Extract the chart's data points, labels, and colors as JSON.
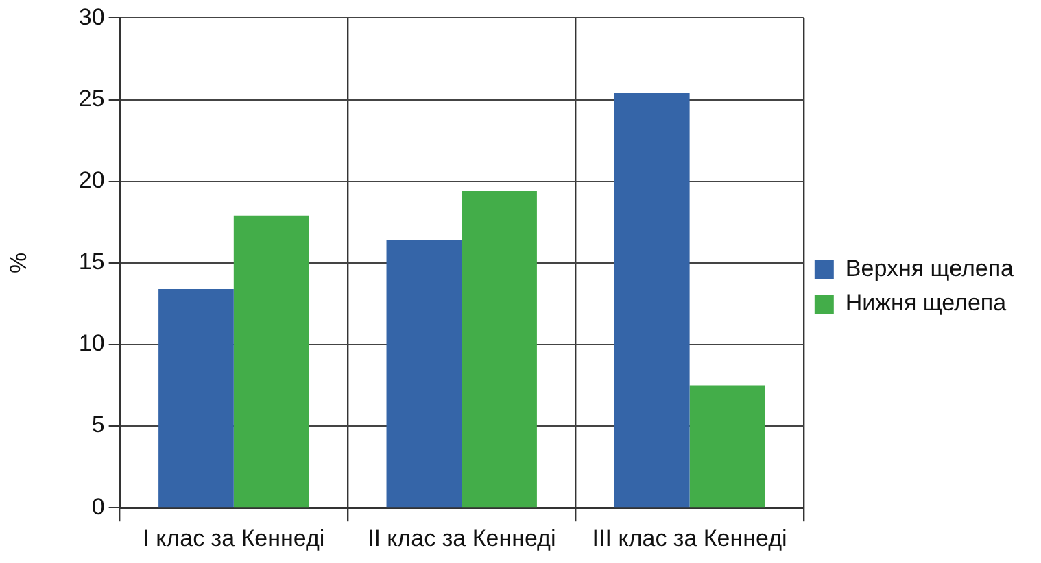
{
  "chart_data": {
    "type": "bar",
    "ylabel": "%",
    "categories": [
      "I клас за Кеннеді",
      "II клас за Кеннеді",
      "III клас за Кеннеді"
    ],
    "series": [
      {
        "name": "Верхня щелепа",
        "color": "#3565a8",
        "values": [
          13.4,
          16.4,
          25.4
        ]
      },
      {
        "name": "Нижня щелепа",
        "color": "#43ad49",
        "values": [
          17.9,
          19.4,
          7.5
        ]
      }
    ],
    "ylim": [
      0,
      30
    ],
    "yticks": [
      0,
      5,
      10,
      15,
      20,
      25,
      30
    ],
    "grid": true,
    "legend": "right"
  }
}
